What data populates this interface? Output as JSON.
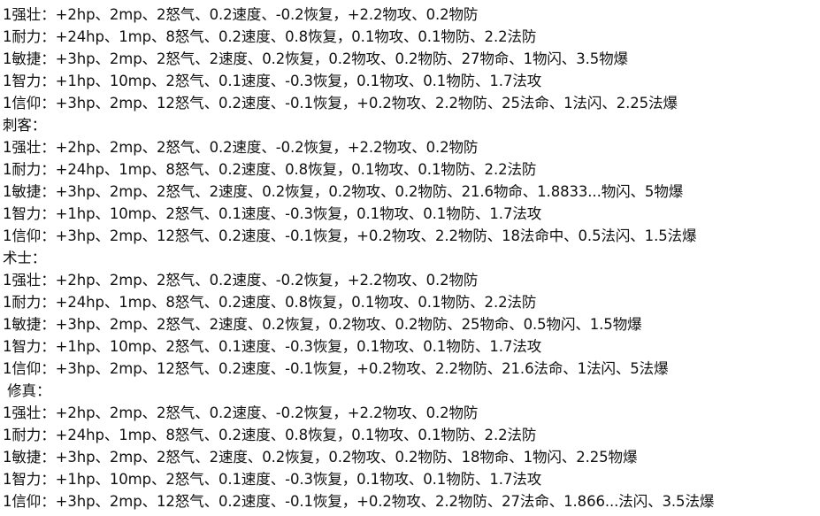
{
  "lines": [
    "1强壮：+2hp、2mp、2怒气、0.2速度、-0.2恢复，+2.2物攻、0.2物防",
    "1耐力：+24hp、1mp、8怒气、0.2速度、0.8恢复，0.1物攻、0.1物防、2.2法防",
    "1敏捷：+3hp、2mp、2怒气、2速度、0.2恢复，0.2物攻、0.2物防、27物命、1物闪、3.5物爆",
    "1智力：+1hp、10mp、2怒气、0.1速度、-0.3恢复，0.1物攻、0.1物防、1.7法攻",
    "1信仰：+3hp、2mp、12怒气、0.2速度、-0.1恢复，+0.2物攻、2.2物防、25法命、1法闪、2.25法爆",
    "刺客：",
    "1强壮：+2hp、2mp、2怒气、0.2速度、-0.2恢复，+2.2物攻、0.2物防",
    "1耐力：+24hp、1mp、8怒气、0.2速度、0.8恢复，0.1物攻、0.1物防、2.2法防",
    "1敏捷：+3hp、2mp、2怒气、2速度、0.2恢复，0.2物攻、0.2物防、21.6物命、1.8833...物闪、5物爆",
    "1智力：+1hp、10mp、2怒气、0.1速度、-0.3恢复，0.1物攻、0.1物防、1.7法攻",
    "1信仰：+3hp、2mp、12怒气、0.2速度、-0.1恢复，+0.2物攻、2.2物防、18法命中、0.5法闪、1.5法爆",
    "术士：",
    "1强壮：+2hp、2mp、2怒气、0.2速度、-0.2恢复，+2.2物攻、0.2物防",
    "1耐力：+24hp、1mp、8怒气、0.2速度、0.8恢复，0.1物攻、0.1物防、2.2法防",
    "1敏捷：+3hp、2mp、2怒气、2速度、0.2恢复，0.2物攻、0.2物防、25物命、0.5物闪、1.5物爆",
    "1智力：+1hp、10mp、2怒气、0.1速度、-0.3恢复，0.1物攻、0.1物防、1.7法攻",
    "1信仰：+3hp、2mp、12怒气、0.2速度、-0.1恢复，+0.2物攻、2.2物防、21.6法命、1法闪、5法爆",
    " 修真：",
    "1强壮：+2hp、2mp、2怒气、0.2速度、-0.2恢复，+2.2物攻、0.2物防",
    "1耐力：+24hp、1mp、8怒气、0.2速度、0.8恢复，0.1物攻、0.1物防、2.2法防",
    "1敏捷：+3hp、2mp、2怒气、2速度、0.2恢复，0.2物攻、0.2物防、18物命、1物闪、2.25物爆",
    "1智力：+1hp、10mp、2怒气、0.1速度、-0.3恢复，0.1物攻、0.1物防、1.7法攻",
    "1信仰：+3hp、2mp、12怒气、0.2速度、-0.1恢复，+0.2物攻、2.2物防、27法命、1.866...法闪、3.5法爆"
  ]
}
